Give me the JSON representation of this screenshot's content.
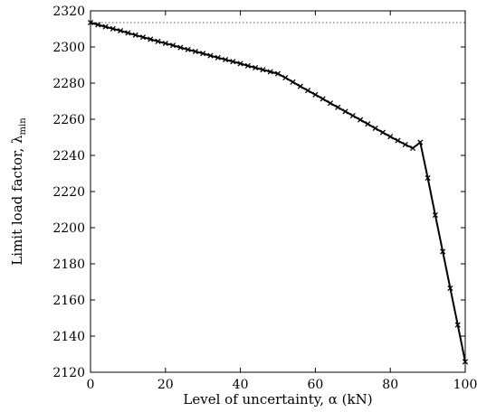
{
  "chart_data": {
    "type": "line",
    "xlabel": "Level of uncertainty, α (kN)",
    "ylabel": "Limit load factor, λ",
    "ylabel_sub": "min",
    "xlim": [
      0,
      100
    ],
    "ylim": [
      2120,
      2320
    ],
    "xticks": [
      0,
      20,
      40,
      60,
      80,
      100
    ],
    "yticks": [
      2120,
      2140,
      2160,
      2180,
      2200,
      2220,
      2240,
      2260,
      2280,
      2300,
      2320
    ],
    "grid": false,
    "reference_line": {
      "y": 2313.5,
      "style": "dotted"
    },
    "series": [
      {
        "marker": "x",
        "x": [
          0,
          2,
          4,
          6,
          8,
          10,
          12,
          14,
          16,
          18,
          20,
          22,
          24,
          26,
          28,
          30,
          32,
          34,
          36,
          38,
          40,
          42,
          44,
          46,
          48,
          50,
          52,
          54,
          56,
          58,
          60,
          62,
          64,
          66,
          68,
          70,
          72,
          74,
          76,
          78,
          80,
          82,
          84,
          86,
          88,
          90,
          92,
          94,
          96,
          98,
          100
        ],
        "y": [
          2313.5,
          2312.3,
          2311.2,
          2310.1,
          2309.0,
          2307.8,
          2306.6,
          2305.4,
          2304.3,
          2303.1,
          2302.0,
          2300.9,
          2299.7,
          2298.6,
          2297.5,
          2296.4,
          2295.2,
          2294.1,
          2293.0,
          2291.9,
          2290.8,
          2289.6,
          2288.5,
          2287.4,
          2286.3,
          2285.2,
          2283.0,
          2280.6,
          2278.2,
          2275.9,
          2273.6,
          2271.3,
          2268.9,
          2266.6,
          2264.3,
          2262.0,
          2259.7,
          2257.4,
          2255.0,
          2252.7,
          2250.4,
          2248.2,
          2246.0,
          2244.0,
          2247.2,
          2227.5,
          2207.0,
          2186.8,
          2166.5,
          2146.2,
          2125.8
        ]
      }
    ]
  }
}
